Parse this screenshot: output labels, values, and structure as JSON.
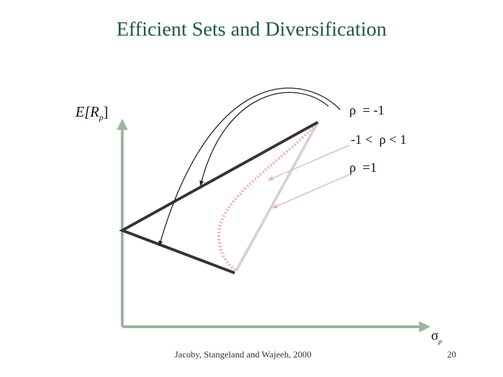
{
  "title": "Efficient Sets and Diversification",
  "axes": {
    "y_label": {
      "prefix": "E[",
      "var": "R",
      "sub": "p",
      "suffix": "]"
    },
    "x_label": {
      "symbol": "σ",
      "sub": "p"
    }
  },
  "legend": {
    "rho_minus_one": "ρ  = -1",
    "rho_between": "-1 <  ρ < 1",
    "rho_one": "ρ  =1"
  },
  "colors": {
    "title": "#1f5a3a",
    "axis": "#9cb59c",
    "frontier_dark": "#333333",
    "frontier_light": "#d4d4d4",
    "frontier_dotted": "#f0a8a8",
    "pointer_arrow": "#e3b4b4",
    "curved_arrow": "#222222"
  },
  "footer": {
    "citation": "Jacoby, Stangeland and Wajeeh, 2000",
    "page_number": "20"
  }
}
